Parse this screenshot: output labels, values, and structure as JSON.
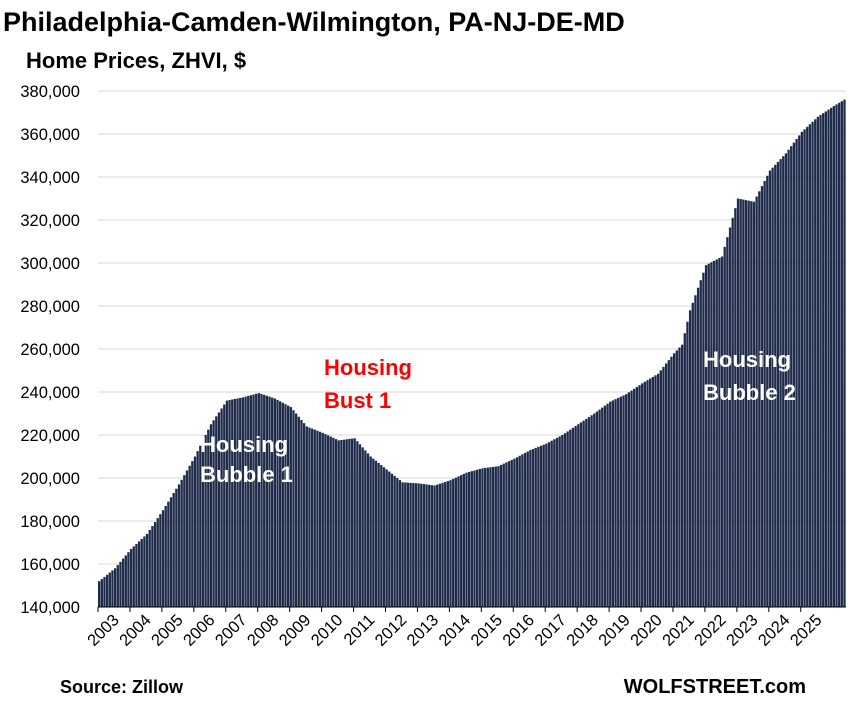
{
  "header": {
    "title": "Philadelphia-Camden-Wilmington, PA-NJ-DE-MD",
    "subtitle": "Home Prices, ZHVI, $"
  },
  "footer": {
    "source": "Source: Zillow",
    "brand": "WOLFSTREET.com"
  },
  "colors": {
    "bar_fill": "#1f2b4a",
    "bar_gap": "#ffffff",
    "grid": "#d9d9d9",
    "axis": "#000000",
    "anno_white": "#ffffff",
    "anno_red": "#ff0000"
  },
  "chart_data": {
    "type": "bar",
    "title": "Philadelphia-Camden-Wilmington, PA-NJ-DE-MD",
    "subtitle": "Home Prices, ZHVI, $",
    "xlabel": "",
    "ylabel": "",
    "ylim": [
      140000,
      380000
    ],
    "yticks": [
      140000,
      160000,
      180000,
      200000,
      220000,
      240000,
      260000,
      280000,
      300000,
      320000,
      340000,
      360000,
      380000
    ],
    "ytick_labels": [
      "140,000",
      "160,000",
      "180,000",
      "200,000",
      "220,000",
      "240,000",
      "260,000",
      "280,000",
      "300,000",
      "320,000",
      "340,000",
      "360,000",
      "380,000"
    ],
    "grid": true,
    "xtick_labels": [
      "2003",
      "2004",
      "2005",
      "2006",
      "2007",
      "2008",
      "2009",
      "2010",
      "2011",
      "2012",
      "2013",
      "2014",
      "2015",
      "2016",
      "2017",
      "2018",
      "2019",
      "2020",
      "2021",
      "2022",
      "2023",
      "2024",
      "2025"
    ],
    "start": "2003-01",
    "frequency": "monthly",
    "series": [
      {
        "name": "Home Prices, ZHVI",
        "anchors": [
          [
            "2003-01",
            152000
          ],
          [
            "2003-07",
            158000
          ],
          [
            "2004-01",
            167000
          ],
          [
            "2004-07",
            174000
          ],
          [
            "2005-01",
            185000
          ],
          [
            "2005-07",
            197000
          ],
          [
            "2006-01",
            210000
          ],
          [
            "2006-07",
            225000
          ],
          [
            "2007-01",
            236000
          ],
          [
            "2007-07",
            237500
          ],
          [
            "2008-01",
            239500
          ],
          [
            "2008-07",
            237000
          ],
          [
            "2009-01",
            233000
          ],
          [
            "2009-07",
            224000
          ],
          [
            "2010-01",
            221000
          ],
          [
            "2010-07",
            217500
          ],
          [
            "2011-01",
            218500
          ],
          [
            "2011-07",
            210000
          ],
          [
            "2012-01",
            204000
          ],
          [
            "2012-07",
            198000
          ],
          [
            "2013-01",
            197500
          ],
          [
            "2013-07",
            196500
          ],
          [
            "2014-01",
            199000
          ],
          [
            "2014-07",
            202500
          ],
          [
            "2015-01",
            204500
          ],
          [
            "2015-07",
            205500
          ],
          [
            "2016-01",
            209000
          ],
          [
            "2016-07",
            213000
          ],
          [
            "2017-01",
            216000
          ],
          [
            "2017-07",
            220000
          ],
          [
            "2018-01",
            225000
          ],
          [
            "2018-07",
            230000
          ],
          [
            "2019-01",
            235500
          ],
          [
            "2019-07",
            239000
          ],
          [
            "2020-01",
            244000
          ],
          [
            "2020-07",
            248500
          ],
          [
            "2021-01",
            258000
          ],
          [
            "2021-04",
            262000
          ],
          [
            "2021-07",
            278000
          ],
          [
            "2022-01",
            299000
          ],
          [
            "2022-07",
            303000
          ],
          [
            "2023-01",
            330000
          ],
          [
            "2023-07",
            328500
          ],
          [
            "2024-01",
            343000
          ],
          [
            "2024-07",
            351000
          ],
          [
            "2025-01",
            361000
          ],
          [
            "2025-07",
            368000
          ],
          [
            "2026-01",
            373000
          ],
          [
            "2026-05",
            376000
          ]
        ]
      }
    ],
    "annotations": [
      {
        "text_lines": [
          "Housing",
          "Bubble 1"
        ],
        "color": "white",
        "anchor_date": "2006-09",
        "anchor_value": 208000
      },
      {
        "text_lines": [
          "Housing",
          "Bust 1"
        ],
        "color": "red",
        "anchor_date": "2011-03",
        "anchor_value": 244000
      },
      {
        "text_lines": [
          "Housing",
          "Bubble 2"
        ],
        "color": "white",
        "anchor_date": "2021-07",
        "anchor_value": 250000
      }
    ],
    "annotation_lines": {
      "bubble1_line1": "Housing",
      "bubble1_line2": "Bubble 1",
      "bust1_line1": "Housing",
      "bust1_line2": "Bust 1",
      "bubble2_line1": "Housing",
      "bubble2_line2": "Bubble 2"
    }
  }
}
